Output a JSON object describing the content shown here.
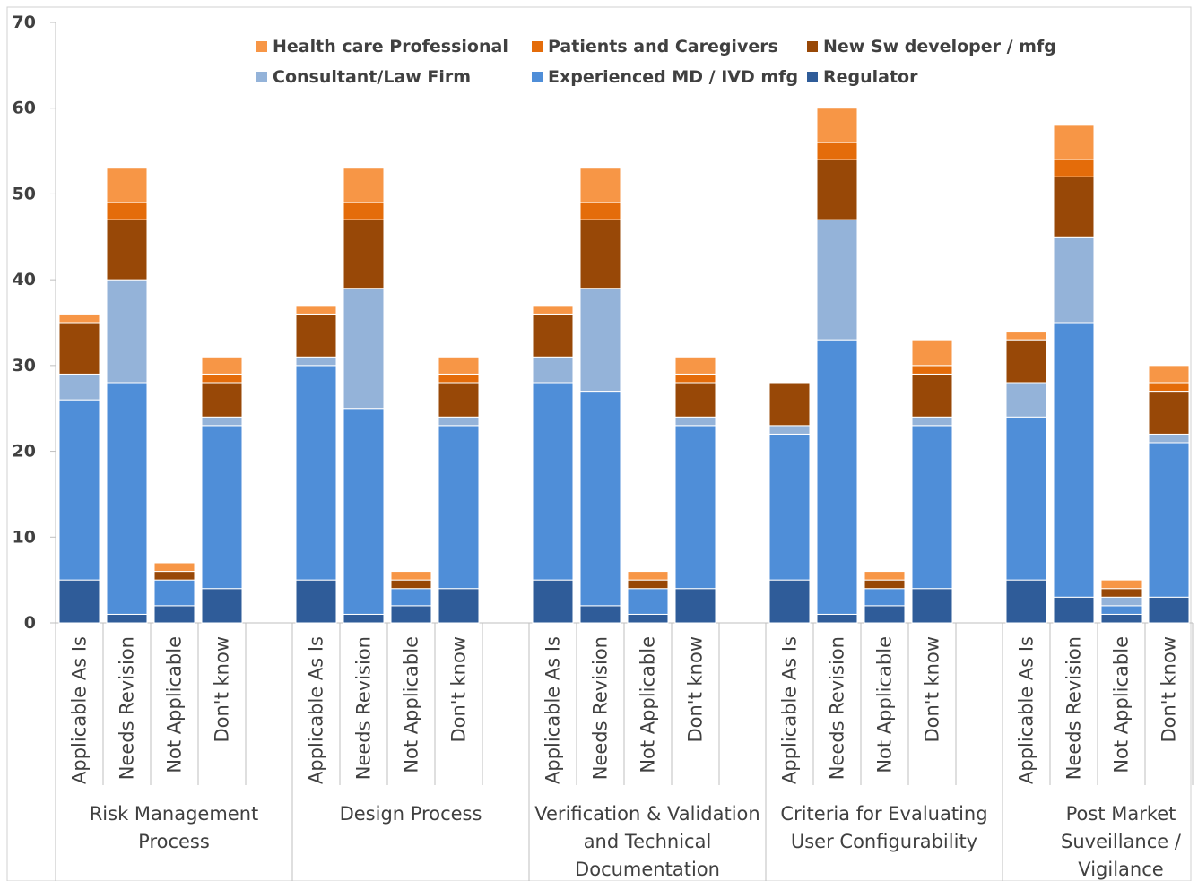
{
  "chart_data": {
    "type": "bar",
    "stacked": true,
    "title": "",
    "xlabel": "",
    "ylabel": "",
    "ylim": [
      0,
      70
    ],
    "yticks": [
      0,
      10,
      20,
      30,
      40,
      50,
      60,
      70
    ],
    "grid": false,
    "legend_position": "top",
    "groups": [
      "Risk Management Process",
      "Design Process",
      "Verification & Validation and Technical Documentation",
      "Criteria for Evaluating User Configurability",
      "Post Market Suveillance / Vigilance"
    ],
    "group_label_lines": [
      [
        "Risk Management",
        "Process"
      ],
      [
        "Design Process"
      ],
      [
        "Verification & Validation",
        "and Technical",
        "Documentation"
      ],
      [
        "Criteria for Evaluating",
        "User Configurability"
      ],
      [
        "Post Market",
        "Suveillance /",
        "Vigilance"
      ]
    ],
    "categories": [
      "Applicable As Is",
      "Needs Revision",
      "Not Applicable",
      "Don't know"
    ],
    "series": [
      {
        "name": "Regulator",
        "color": "#2F5C99",
        "values": [
          [
            5,
            1,
            2,
            4
          ],
          [
            5,
            1,
            2,
            4
          ],
          [
            5,
            2,
            1,
            4
          ],
          [
            5,
            1,
            2,
            4
          ],
          [
            5,
            3,
            1,
            3
          ]
        ]
      },
      {
        "name": "Experienced MD / IVD mfg",
        "color": "#4F8ED8",
        "values": [
          [
            21,
            27,
            3,
            19
          ],
          [
            25,
            24,
            2,
            19
          ],
          [
            23,
            25,
            3,
            19
          ],
          [
            17,
            32,
            2,
            19
          ],
          [
            19,
            32,
            1,
            18
          ]
        ]
      },
      {
        "name": "Consultant/Law Firm",
        "color": "#94B3D9",
        "values": [
          [
            3,
            12,
            0,
            1
          ],
          [
            1,
            14,
            0,
            1
          ],
          [
            3,
            12,
            0,
            1
          ],
          [
            1,
            14,
            0,
            1
          ],
          [
            4,
            10,
            1,
            1
          ]
        ]
      },
      {
        "name": "New Sw developer / mfg",
        "color": "#984807",
        "values": [
          [
            6,
            7,
            1,
            4
          ],
          [
            5,
            8,
            1,
            4
          ],
          [
            5,
            8,
            1,
            4
          ],
          [
            5,
            7,
            1,
            5
          ],
          [
            5,
            7,
            1,
            5
          ]
        ]
      },
      {
        "name": "Patients and Caregivers",
        "color": "#E46C0A",
        "values": [
          [
            0,
            2,
            0,
            1
          ],
          [
            0,
            2,
            0,
            1
          ],
          [
            0,
            2,
            0,
            1
          ],
          [
            0,
            2,
            0,
            1
          ],
          [
            0,
            2,
            0,
            1
          ]
        ]
      },
      {
        "name": "Health care Professional",
        "color": "#F79646",
        "values": [
          [
            1,
            4,
            1,
            2
          ],
          [
            1,
            4,
            1,
            2
          ],
          [
            1,
            4,
            1,
            2
          ],
          [
            0,
            4,
            1,
            3
          ],
          [
            1,
            4,
            1,
            2
          ]
        ]
      }
    ],
    "legend_order": [
      "Health care Professional",
      "Patients and Caregivers",
      "New Sw developer / mfg",
      "Consultant/Law Firm",
      "Experienced MD / IVD mfg",
      "Regulator"
    ]
  }
}
